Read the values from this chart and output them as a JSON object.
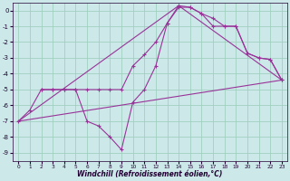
{
  "xlabel": "Windchill (Refroidissement éolien,°C)",
  "background_color": "#cce8e8",
  "line_color": "#993399",
  "grid_color": "#99ccbb",
  "ylim": [
    -9.5,
    0.5
  ],
  "xlim": [
    -0.5,
    23.5
  ],
  "yticks": [
    0,
    -1,
    -2,
    -3,
    -4,
    -5,
    -6,
    -7,
    -8,
    -9
  ],
  "xticks": [
    0,
    1,
    2,
    3,
    4,
    5,
    6,
    7,
    8,
    9,
    10,
    11,
    12,
    13,
    14,
    15,
    16,
    17,
    18,
    19,
    20,
    21,
    22,
    23
  ],
  "line1_x": [
    2,
    3,
    4,
    5,
    6,
    7,
    8,
    9,
    10,
    11,
    12,
    13,
    14,
    15,
    16,
    17,
    18,
    19,
    20,
    21,
    22,
    23
  ],
  "line1_y": [
    -5.0,
    -5.0,
    -5.0,
    -5.0,
    -5.0,
    -5.0,
    -5.0,
    -5.0,
    -3.5,
    -2.8,
    -2.0,
    -0.8,
    0.2,
    0.2,
    -0.2,
    -1.0,
    -1.0,
    -1.0,
    -2.7,
    -3.0,
    -3.1,
    -4.4
  ],
  "line2_x": [
    0,
    1,
    2,
    3,
    4,
    5,
    6,
    7,
    8,
    9,
    10,
    11,
    12,
    13,
    14,
    15,
    16,
    17,
    18,
    19,
    20,
    21,
    22,
    23
  ],
  "line2_y": [
    -7.0,
    -6.3,
    -5.0,
    -5.0,
    -5.0,
    -5.0,
    -7.0,
    -7.3,
    -8.0,
    -8.8,
    -5.8,
    -5.0,
    -3.5,
    -0.8,
    0.3,
    0.2,
    -0.2,
    -0.5,
    -1.0,
    -1.0,
    -2.7,
    -3.0,
    -3.1,
    -4.4
  ],
  "line3_x": [
    0,
    23
  ],
  "line3_y": [
    -7.0,
    -4.4
  ],
  "line4_x": [
    0,
    14,
    23
  ],
  "line4_y": [
    -7.0,
    0.3,
    -4.4
  ]
}
